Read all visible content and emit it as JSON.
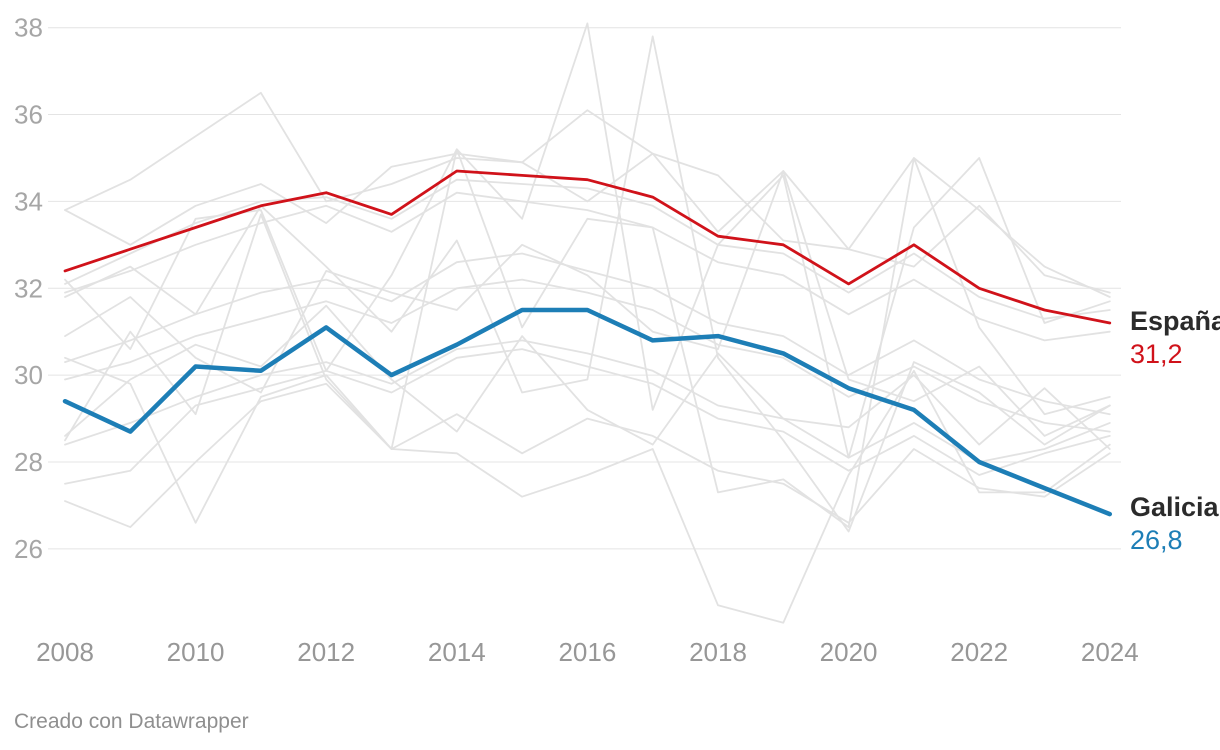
{
  "footer": {
    "credit": "Creado con Datawrapper"
  },
  "end_labels": [
    {
      "name": "España",
      "value": "31,2"
    },
    {
      "name": "Galicia",
      "value": "26,8"
    }
  ],
  "chart_data": {
    "type": "line",
    "title": "",
    "xlabel": "",
    "ylabel": "",
    "x": [
      2008,
      2009,
      2010,
      2011,
      2012,
      2013,
      2014,
      2015,
      2016,
      2017,
      2018,
      2019,
      2020,
      2021,
      2022,
      2023,
      2024
    ],
    "x_ticks": [
      2008,
      2010,
      2012,
      2014,
      2016,
      2018,
      2020,
      2022,
      2024
    ],
    "y_ticks": [
      26,
      28,
      30,
      32,
      34,
      36,
      38
    ],
    "ylim": [
      24,
      38.5
    ],
    "grid": "horizontal",
    "legend_position": "direct-end-labels-right",
    "colors": {
      "espana": "#d0121a",
      "galicia": "#1d7eb6",
      "background_lines": "#e2e2e2",
      "grid": "#e4e4e4",
      "y_tick_text": "#a6a6a6",
      "x_tick_text": "#979797",
      "label_text": "#2b2b2b"
    },
    "series": [
      {
        "name": "España",
        "color": "#d0121a",
        "width": 2.8,
        "end_value_label": "31,2",
        "values": [
          32.4,
          32.9,
          33.4,
          33.9,
          34.2,
          33.7,
          34.7,
          34.6,
          34.5,
          34.1,
          33.2,
          33.0,
          32.1,
          33.0,
          32.0,
          31.5,
          31.2
        ]
      },
      {
        "name": "Galicia",
        "color": "#1d7eb6",
        "width": 4.5,
        "end_value_label": "26,8",
        "values": [
          29.4,
          28.7,
          30.2,
          30.1,
          31.1,
          30.0,
          30.7,
          31.5,
          31.5,
          30.8,
          30.9,
          30.5,
          29.7,
          29.2,
          28.0,
          27.4,
          26.8
        ]
      }
    ],
    "background_series": [
      {
        "name": "other-region-1",
        "values": [
          32.2,
          30.6,
          33.6,
          33.8,
          30.1,
          32.3,
          35.2,
          33.6,
          38.1,
          29.2,
          33.0,
          34.6,
          28.1,
          33.4,
          35.0,
          31.2,
          31.7
        ]
      },
      {
        "name": "other-region-2",
        "values": [
          31.8,
          32.5,
          31.4,
          33.9,
          32.5,
          31.0,
          33.1,
          29.6,
          29.9,
          37.8,
          30.4,
          28.5,
          26.4,
          30.3,
          29.6,
          28.4,
          29.3
        ]
      },
      {
        "name": "other-region-3",
        "values": [
          33.8,
          34.5,
          35.5,
          36.5,
          34.0,
          34.4,
          35.0,
          34.9,
          34.0,
          35.1,
          34.6,
          33.1,
          32.9,
          35.0,
          33.8,
          32.5,
          31.8
        ]
      },
      {
        "name": "other-region-4",
        "values": [
          30.4,
          29.8,
          26.6,
          29.5,
          30.0,
          28.3,
          28.2,
          27.2,
          27.7,
          28.3,
          24.7,
          24.3,
          27.7,
          30.1,
          27.3,
          27.3,
          28.4
        ]
      },
      {
        "name": "other-region-5",
        "values": [
          28.5,
          31.0,
          29.1,
          33.7,
          29.9,
          28.3,
          35.2,
          31.1,
          33.6,
          33.4,
          27.3,
          27.6,
          26.5,
          35.0,
          31.1,
          29.1,
          29.5
        ]
      },
      {
        "name": "other-region-6",
        "values": [
          32.1,
          32.8,
          33.5,
          34.0,
          34.1,
          33.6,
          34.5,
          34.4,
          34.3,
          33.9,
          33.0,
          32.8,
          31.9,
          32.8,
          31.8,
          31.3,
          31.5
        ]
      },
      {
        "name": "other-region-7",
        "values": [
          31.9,
          32.4,
          33.0,
          33.5,
          33.9,
          33.3,
          34.2,
          34.0,
          33.8,
          33.4,
          32.6,
          32.3,
          31.4,
          32.2,
          31.3,
          30.8,
          31.0
        ]
      },
      {
        "name": "other-region-8",
        "values": [
          30.3,
          30.8,
          31.4,
          31.9,
          32.2,
          31.7,
          32.6,
          32.8,
          32.4,
          32.0,
          31.2,
          30.9,
          30.0,
          30.8,
          29.9,
          29.4,
          29.1
        ]
      },
      {
        "name": "other-region-9",
        "values": [
          29.9,
          30.3,
          30.9,
          31.3,
          31.7,
          31.2,
          32.0,
          32.2,
          31.9,
          31.5,
          30.7,
          30.4,
          29.5,
          30.2,
          29.4,
          28.9,
          28.7
        ]
      },
      {
        "name": "other-region-10",
        "values": [
          28.4,
          28.9,
          29.5,
          30.0,
          30.3,
          29.8,
          30.6,
          30.8,
          30.5,
          30.1,
          29.3,
          29.0,
          28.1,
          28.9,
          28.0,
          28.3,
          28.9
        ]
      },
      {
        "name": "other-region-11",
        "values": [
          27.5,
          27.8,
          29.3,
          29.7,
          30.1,
          29.6,
          30.4,
          30.6,
          30.2,
          29.8,
          29.0,
          28.7,
          27.8,
          28.6,
          27.7,
          28.2,
          28.6
        ]
      },
      {
        "name": "other-region-12",
        "values": [
          27.1,
          26.5,
          28.0,
          29.4,
          29.8,
          28.3,
          29.1,
          28.2,
          29.0,
          28.6,
          27.8,
          27.5,
          26.6,
          28.3,
          27.4,
          27.2,
          28.2
        ]
      },
      {
        "name": "other-region-13",
        "values": [
          33.8,
          33.0,
          33.9,
          34.4,
          33.5,
          34.8,
          35.1,
          34.9,
          36.1,
          35.1,
          33.3,
          34.7,
          32.9,
          32.5,
          33.9,
          32.3,
          31.9
        ]
      },
      {
        "name": "other-region-14",
        "values": [
          30.9,
          31.8,
          30.4,
          29.6,
          32.4,
          31.9,
          31.5,
          33.0,
          32.3,
          31.0,
          30.6,
          34.7,
          29.9,
          29.4,
          30.2,
          28.6,
          29.3
        ]
      },
      {
        "name": "other-region-15",
        "values": [
          28.6,
          29.9,
          30.7,
          30.2,
          31.6,
          29.9,
          28.7,
          30.9,
          29.2,
          28.4,
          30.5,
          29.0,
          28.8,
          30.0,
          28.4,
          29.7,
          28.3
        ]
      }
    ]
  }
}
